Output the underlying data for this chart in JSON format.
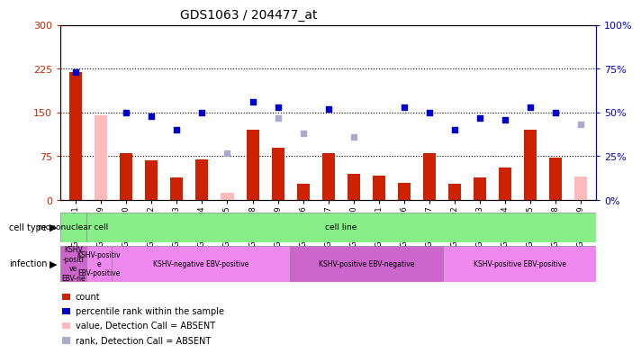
{
  "title": "GDS1063 / 204477_at",
  "samples": [
    "GSM38791",
    "GSM38789",
    "GSM38790",
    "GSM38802",
    "GSM38803",
    "GSM38804",
    "GSM38805",
    "GSM38808",
    "GSM38809",
    "GSM38796",
    "GSM38797",
    "GSM38800",
    "GSM38801",
    "GSM38806",
    "GSM38807",
    "GSM38792",
    "GSM38793",
    "GSM38794",
    "GSM38795",
    "GSM38798",
    "GSM38799"
  ],
  "count_values": [
    220,
    null,
    80,
    68,
    38,
    70,
    null,
    120,
    90,
    28,
    80,
    45,
    42,
    30,
    80,
    28,
    38,
    55,
    120,
    72,
    null
  ],
  "count_absent": [
    null,
    145,
    null,
    null,
    null,
    null,
    12,
    null,
    null,
    null,
    null,
    null,
    null,
    null,
    null,
    null,
    null,
    null,
    null,
    null,
    40
  ],
  "percentile_vals": [
    73,
    null,
    50,
    48,
    40,
    50,
    null,
    56,
    53,
    null,
    52,
    null,
    null,
    53,
    50,
    40,
    47,
    46,
    53,
    50,
    null
  ],
  "percentile_absent": [
    null,
    null,
    null,
    null,
    null,
    null,
    27,
    null,
    47,
    38,
    null,
    36,
    null,
    null,
    null,
    null,
    null,
    null,
    null,
    null,
    43
  ],
  "ylim_left": [
    0,
    300
  ],
  "ylim_right": [
    0,
    100
  ],
  "yticks_left": [
    0,
    75,
    150,
    225,
    300
  ],
  "yticks_right": [
    0,
    25,
    50,
    75,
    100
  ],
  "ytick_labels_left": [
    "0",
    "75",
    "150",
    "225",
    "300"
  ],
  "ytick_labels_right": [
    "0%",
    "25%",
    "50%",
    "75%",
    "100%"
  ],
  "hline_values": [
    75,
    150,
    225
  ],
  "bar_color": "#cc2200",
  "bar_absent_color": "#ffbbbb",
  "marker_color": "#0000cc",
  "marker_absent_color": "#aaaacc",
  "cell_type_sections": [
    {
      "label": "mononuclear cell",
      "start": 0,
      "end": 1,
      "color": "#88ee88"
    },
    {
      "label": "cell line",
      "start": 1,
      "end": 21,
      "color": "#88ee88"
    }
  ],
  "infection_sections": [
    {
      "label": "KSHV\n-positi\nve\nEBV-ne",
      "start": 0,
      "end": 1,
      "color": "#cc66cc"
    },
    {
      "label": "KSHV-positiv\ne\nEBV-positive",
      "start": 1,
      "end": 2,
      "color": "#ee88ee"
    },
    {
      "label": "KSHV-negative EBV-positive",
      "start": 2,
      "end": 9,
      "color": "#ee88ee"
    },
    {
      "label": "KSHV-positive EBV-negative",
      "start": 9,
      "end": 15,
      "color": "#cc66cc"
    },
    {
      "label": "KSHV-positive EBV-positive",
      "start": 15,
      "end": 21,
      "color": "#ee88ee"
    }
  ],
  "bg_color": "#ffffff",
  "legend_items": [
    {
      "color": "#cc2200",
      "label": "count",
      "marker": "s"
    },
    {
      "color": "#0000cc",
      "label": "percentile rank within the sample",
      "marker": "s"
    },
    {
      "color": "#ffbbbb",
      "label": "value, Detection Call = ABSENT",
      "marker": "s"
    },
    {
      "color": "#aaaacc",
      "label": "rank, Detection Call = ABSENT",
      "marker": "s"
    }
  ]
}
